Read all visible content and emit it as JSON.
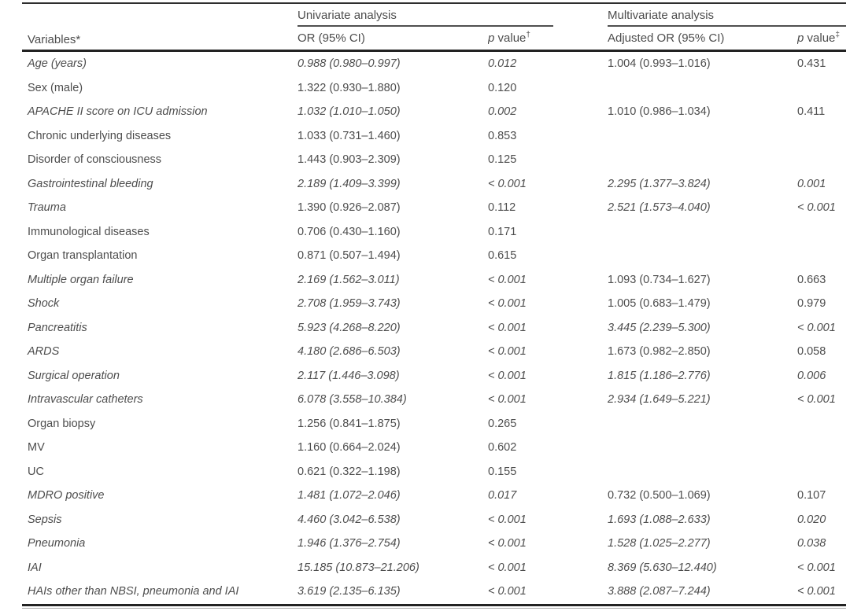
{
  "table": {
    "header": {
      "variables_label": "Variables*",
      "univariate_group": "Univariate analysis",
      "multivariate_group": "Multivariate analysis",
      "or_label": "OR (95% CI)",
      "p_uni": {
        "p": "p",
        "rest": "value",
        "sup": "†"
      },
      "adjusted_or_label": "Adjusted OR (95% CI)",
      "p_multi": {
        "p": "p",
        "rest": "value",
        "sup": "‡"
      }
    },
    "rows": [
      {
        "v": "Age (years)",
        "or": "0.988 (0.980–0.997)",
        "p": "0.012",
        "aor": "1.004 (0.993–1.016)",
        "p2": "0.431",
        "italics": [
          1,
          1,
          1,
          0,
          0
        ]
      },
      {
        "v": "Sex (male)",
        "or": "1.322 (0.930–1.880)",
        "p": "0.120",
        "aor": "",
        "p2": "",
        "italics": [
          0,
          0,
          0,
          0,
          0
        ]
      },
      {
        "v": "APACHE II score on ICU admission",
        "or": "1.032 (1.010–1.050)",
        "p": "0.002",
        "aor": "1.010 (0.986–1.034)",
        "p2": "0.411",
        "italics": [
          1,
          1,
          1,
          0,
          0
        ]
      },
      {
        "v": "Chronic underlying diseases",
        "or": "1.033 (0.731–1.460)",
        "p": "0.853",
        "aor": "",
        "p2": "",
        "italics": [
          0,
          0,
          0,
          0,
          0
        ]
      },
      {
        "v": "Disorder of consciousness",
        "or": "1.443 (0.903–2.309)",
        "p": "0.125",
        "aor": "",
        "p2": "",
        "italics": [
          0,
          0,
          0,
          0,
          0
        ]
      },
      {
        "v": "Gastrointestinal bleeding",
        "or": "2.189 (1.409–3.399)",
        "p": "< 0.001",
        "aor": "2.295 (1.377–3.824)",
        "p2": "0.001",
        "italics": [
          1,
          1,
          1,
          1,
          1
        ]
      },
      {
        "v": "Trauma",
        "or": "1.390 (0.926–2.087)",
        "p": "0.112",
        "aor": "2.521 (1.573–4.040)",
        "p2": "< 0.001",
        "italics": [
          1,
          0,
          0,
          1,
          1
        ]
      },
      {
        "v": "Immunological diseases",
        "or": "0.706 (0.430–1.160)",
        "p": "0.171",
        "aor": "",
        "p2": "",
        "italics": [
          0,
          0,
          0,
          0,
          0
        ]
      },
      {
        "v": "Organ transplantation",
        "or": "0.871 (0.507–1.494)",
        "p": "0.615",
        "aor": "",
        "p2": "",
        "italics": [
          0,
          0,
          0,
          0,
          0
        ]
      },
      {
        "v": "Multiple organ failure",
        "or": "2.169 (1.562–3.011)",
        "p": "< 0.001",
        "aor": "1.093 (0.734–1.627)",
        "p2": "0.663",
        "italics": [
          1,
          1,
          1,
          0,
          0
        ]
      },
      {
        "v": "Shock",
        "or": "2.708 (1.959–3.743)",
        "p": "< 0.001",
        "aor": "1.005 (0.683–1.479)",
        "p2": "0.979",
        "italics": [
          1,
          1,
          1,
          0,
          0
        ]
      },
      {
        "v": "Pancreatitis",
        "or": "5.923 (4.268–8.220)",
        "p": "< 0.001",
        "aor": "3.445 (2.239–5.300)",
        "p2": "< 0.001",
        "italics": [
          1,
          1,
          1,
          1,
          1
        ]
      },
      {
        "v": "ARDS",
        "or": "4.180 (2.686–6.503)",
        "p": "< 0.001",
        "aor": "1.673 (0.982–2.850)",
        "p2": "0.058",
        "italics": [
          1,
          1,
          1,
          0,
          0
        ]
      },
      {
        "v": "Surgical operation",
        "or": "2.117 (1.446–3.098)",
        "p": "< 0.001",
        "aor": "1.815 (1.186–2.776)",
        "p2": "0.006",
        "italics": [
          1,
          1,
          1,
          1,
          1
        ]
      },
      {
        "v": "Intravascular catheters",
        "or": "6.078 (3.558–10.384)",
        "p": "< 0.001",
        "aor": "2.934 (1.649–5.221)",
        "p2": "< 0.001",
        "italics": [
          1,
          1,
          1,
          1,
          1
        ]
      },
      {
        "v": "Organ biopsy",
        "or": "1.256 (0.841–1.875)",
        "p": "0.265",
        "aor": "",
        "p2": "",
        "italics": [
          0,
          0,
          0,
          0,
          0
        ]
      },
      {
        "v": "MV",
        "or": "1.160 (0.664–2.024)",
        "p": "0.602",
        "aor": "",
        "p2": "",
        "italics": [
          0,
          0,
          0,
          0,
          0
        ]
      },
      {
        "v": "UC",
        "or": "0.621 (0.322–1.198)",
        "p": "0.155",
        "aor": "",
        "p2": "",
        "italics": [
          0,
          0,
          0,
          0,
          0
        ]
      },
      {
        "v": "MDRO positive",
        "or": "1.481 (1.072–2.046)",
        "p": "0.017",
        "aor": "0.732 (0.500–1.069)",
        "p2": "0.107",
        "italics": [
          1,
          1,
          1,
          0,
          0
        ]
      },
      {
        "v": "Sepsis",
        "or": "4.460 (3.042–6.538)",
        "p": "< 0.001",
        "aor": "1.693 (1.088–2.633)",
        "p2": "0.020",
        "italics": [
          1,
          1,
          1,
          1,
          1
        ]
      },
      {
        "v": "Pneumonia",
        "or": "1.946 (1.376–2.754)",
        "p": "< 0.001",
        "aor": "1.528 (1.025–2.277)",
        "p2": "0.038",
        "italics": [
          1,
          1,
          1,
          1,
          1
        ]
      },
      {
        "v": "IAI",
        "or": "15.185 (10.873–21.206)",
        "p": "< 0.001",
        "aor": "8.369 (5.630–12.440)",
        "p2": "< 0.001",
        "italics": [
          1,
          1,
          1,
          1,
          1
        ]
      },
      {
        "v": "HAIs other than NBSI, pneumonia and IAI",
        "or": "3.619 (2.135–6.135)",
        "p": "< 0.001",
        "aor": "3.888 (2.087–7.244)",
        "p2": "< 0.001",
        "italics": [
          1,
          1,
          1,
          1,
          1
        ]
      }
    ]
  }
}
